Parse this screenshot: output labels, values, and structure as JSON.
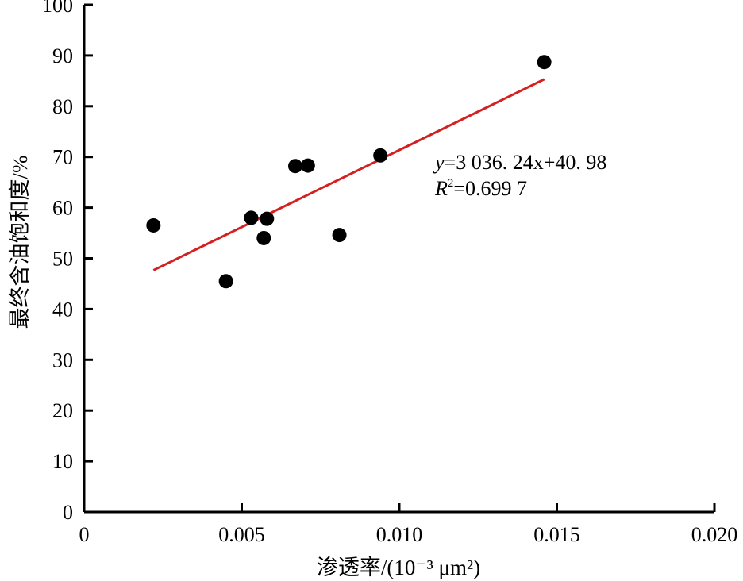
{
  "chart_data": {
    "type": "scatter",
    "xlabel": "渗透率/(10⁻³ μm²)",
    "ylabel": "最终含油饱和度/%",
    "xlim": [
      0,
      0.02
    ],
    "ylim": [
      0,
      100
    ],
    "xticks": [
      "0",
      "0.005",
      "0.010",
      "0.015",
      "0.020"
    ],
    "yticks": [
      "0",
      "10",
      "20",
      "30",
      "40",
      "50",
      "60",
      "70",
      "80",
      "90",
      "100"
    ],
    "grid": false,
    "points": [
      {
        "x": 0.0022,
        "y": 56.5
      },
      {
        "x": 0.0045,
        "y": 45.5
      },
      {
        "x": 0.0053,
        "y": 58.0
      },
      {
        "x": 0.0057,
        "y": 54.0
      },
      {
        "x": 0.0058,
        "y": 57.8
      },
      {
        "x": 0.0067,
        "y": 68.2
      },
      {
        "x": 0.0071,
        "y": 68.3
      },
      {
        "x": 0.0081,
        "y": 54.6
      },
      {
        "x": 0.0094,
        "y": 70.3
      },
      {
        "x": 0.0146,
        "y": 88.7
      }
    ],
    "fit": {
      "slope": 3036.24,
      "intercept": 40.98,
      "x_range": [
        0.0022,
        0.0146
      ],
      "color": "#d42020",
      "equation": "y=3 036. 24x+40. 98",
      "r2_label": "R²=0.699 7"
    },
    "marker_color": "#000000"
  }
}
